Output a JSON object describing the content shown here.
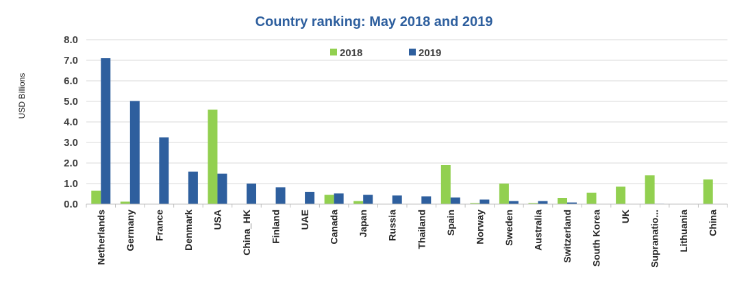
{
  "chart_data": {
    "type": "bar",
    "title": "Country ranking: May 2018 and 2019",
    "ylabel": "USD Billions",
    "xlabel": "",
    "ylim": [
      0,
      8
    ],
    "yticks": [
      "0.0",
      "1.0",
      "2.0",
      "3.0",
      "4.0",
      "5.0",
      "6.0",
      "7.0",
      "8.0"
    ],
    "grid": true,
    "legend_position": "top-center",
    "categories": [
      "Netherlands",
      "Germany",
      "France",
      "Denmark",
      "USA",
      "China_HK",
      "Finland",
      "UAE",
      "Canada",
      "Japan",
      "Russia",
      "Thailand",
      "Spain",
      "Norway",
      "Sweden",
      "Australia",
      "Switzerland",
      "South Korea",
      "UK",
      "Supranatio...",
      "Lithuania",
      "China"
    ],
    "series": [
      {
        "name": "2018",
        "color": "#92D050",
        "values": [
          0.65,
          0.12,
          0,
          0,
          4.6,
          0,
          0,
          0,
          0.45,
          0.15,
          0,
          0,
          1.9,
          0.05,
          1.0,
          0.05,
          0.3,
          0.55,
          0.85,
          1.4,
          0,
          1.2
        ]
      },
      {
        "name": "2019",
        "color": "#2E5F9E",
        "values": [
          7.1,
          5.02,
          3.25,
          1.58,
          1.48,
          1.0,
          0.82,
          0.6,
          0.52,
          0.45,
          0.42,
          0.38,
          0.32,
          0.22,
          0.15,
          0.15,
          0.08,
          0,
          0,
          0.02,
          0,
          0
        ]
      }
    ]
  },
  "colors": {
    "title": "#2E5F9E",
    "grid": "#D9D9D9",
    "axis": "#BFBFBF"
  }
}
